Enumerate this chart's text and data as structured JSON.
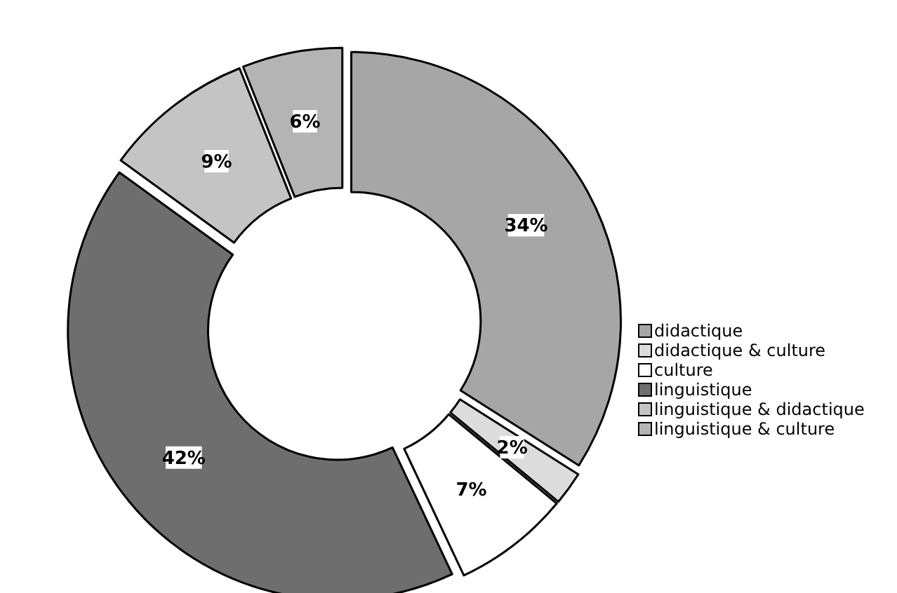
{
  "chart_data": {
    "type": "donut",
    "categories": [
      "didactique",
      "didactique & culture",
      "culture",
      "linguistique",
      "linguistique & didactique",
      "linguistique & culture"
    ],
    "values": [
      34,
      2,
      7,
      42,
      9,
      6
    ],
    "value_labels": [
      "34%",
      "2%",
      "7%",
      "42%",
      "9%",
      "6%"
    ],
    "colors": [
      "#a6a6a6",
      "#dcdcdc",
      "#ffffff",
      "#6e6e6e",
      "#c4c4c4",
      "#b4b4b4"
    ],
    "legend": "right"
  }
}
